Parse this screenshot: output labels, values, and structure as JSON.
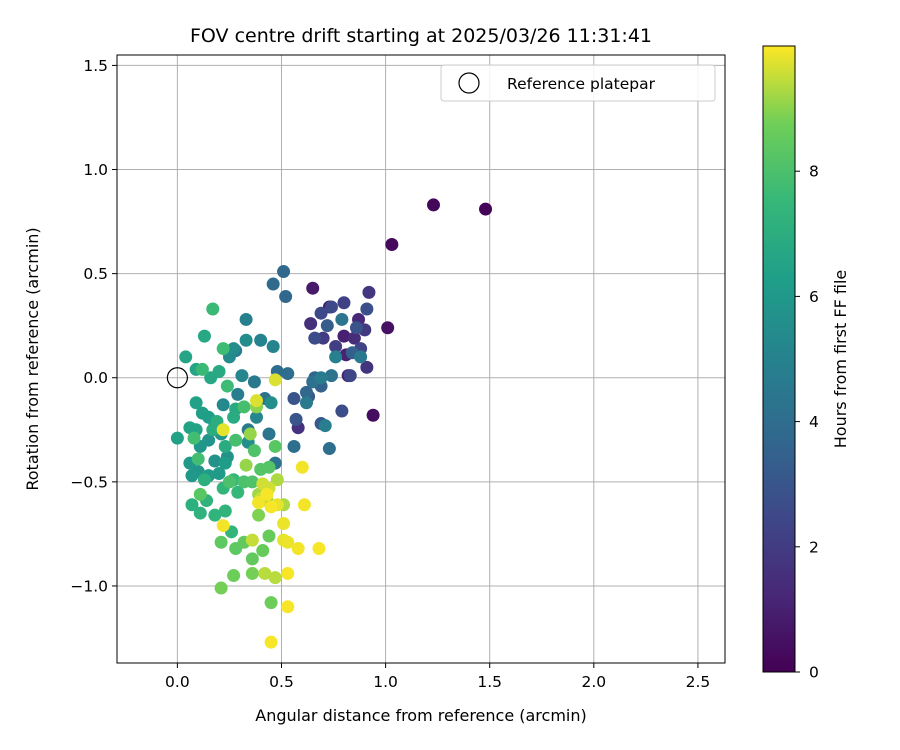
{
  "chart_data": {
    "type": "scatter",
    "title": "FOV centre drift starting at 2025/03/26 11:31:41",
    "xlabel": "Angular distance from reference (arcmin)",
    "ylabel": "Rotation from reference (arcmin)",
    "xlim": [
      -0.29,
      2.63
    ],
    "ylim": [
      -1.37,
      1.55
    ],
    "xticks": [
      0.0,
      0.5,
      1.0,
      1.5,
      2.0,
      2.5
    ],
    "xtick_labels": [
      "0.0",
      "0.5",
      "1.0",
      "1.5",
      "2.0",
      "2.5"
    ],
    "yticks": [
      -1.0,
      -0.5,
      0.0,
      0.5,
      1.0,
      1.5
    ],
    "ytick_labels": [
      "−1.0",
      "−0.5",
      "0.0",
      "0.5",
      "1.0",
      "1.5"
    ],
    "grid": true,
    "legend": {
      "position": "top-right",
      "entries": [
        {
          "label": "Reference platepar",
          "marker": "open-circle"
        }
      ]
    },
    "reference_point": {
      "x": 0.0,
      "y": 0.0
    },
    "colorbar": {
      "label": "Hours from first FF file",
      "colormap": "viridis",
      "range": [
        0,
        10
      ],
      "ticks": [
        0,
        2,
        4,
        6,
        8
      ],
      "tick_labels": [
        "0",
        "2",
        "4",
        "6",
        "8"
      ]
    },
    "points": [
      [
        1.48,
        0.81,
        0.1
      ],
      [
        1.23,
        0.83,
        0.2
      ],
      [
        1.03,
        0.64,
        0.3
      ],
      [
        0.94,
        -0.18,
        0.4
      ],
      [
        1.01,
        0.24,
        0.5
      ],
      [
        0.65,
        0.43,
        0.8
      ],
      [
        0.73,
        0.34,
        0.9
      ],
      [
        0.8,
        0.2,
        1.0
      ],
      [
        0.81,
        0.11,
        1.1
      ],
      [
        0.82,
        0.01,
        1.2
      ],
      [
        0.87,
        0.28,
        1.3
      ],
      [
        0.85,
        0.19,
        1.4
      ],
      [
        0.64,
        0.26,
        1.5
      ],
      [
        0.58,
        -0.24,
        1.6
      ],
      [
        0.91,
        0.05,
        1.7
      ],
      [
        0.92,
        0.41,
        1.8
      ],
      [
        0.9,
        0.23,
        1.9
      ],
      [
        0.7,
        0.19,
        2.0
      ],
      [
        0.76,
        0.15,
        2.1
      ],
      [
        0.8,
        0.36,
        2.2
      ],
      [
        0.88,
        0.14,
        2.3
      ],
      [
        0.83,
        0.01,
        2.4
      ],
      [
        0.69,
        0.31,
        2.5
      ],
      [
        0.74,
        0.34,
        2.5
      ],
      [
        0.66,
        0.19,
        2.6
      ],
      [
        0.79,
        -0.16,
        2.7
      ],
      [
        0.91,
        0.33,
        2.8
      ],
      [
        0.86,
        0.24,
        2.9
      ],
      [
        0.56,
        -0.1,
        3.0
      ],
      [
        0.57,
        -0.2,
        3.0
      ],
      [
        0.63,
        -0.09,
        3.1
      ],
      [
        0.69,
        -0.22,
        3.2
      ],
      [
        0.72,
        0.25,
        3.3
      ],
      [
        0.84,
        0.12,
        3.4
      ],
      [
        0.69,
        -0.04,
        3.5
      ],
      [
        0.66,
        0.0,
        3.6
      ],
      [
        0.62,
        -0.07,
        3.7
      ],
      [
        0.52,
        0.39,
        3.8
      ],
      [
        0.51,
        0.51,
        3.8
      ],
      [
        0.46,
        0.45,
        3.9
      ],
      [
        0.48,
        0.03,
        4.0
      ],
      [
        0.53,
        0.02,
        4.0
      ],
      [
        0.73,
        -0.34,
        4.1
      ],
      [
        0.56,
        -0.33,
        4.1
      ],
      [
        0.65,
        -0.02,
        4.2
      ],
      [
        0.74,
        0.01,
        4.3
      ],
      [
        0.79,
        0.28,
        4.4
      ],
      [
        0.88,
        0.1,
        4.5
      ],
      [
        0.62,
        -0.12,
        4.6
      ],
      [
        0.69,
        0.0,
        4.7
      ],
      [
        0.71,
        -0.23,
        4.8
      ],
      [
        0.76,
        0.1,
        4.9
      ],
      [
        0.42,
        -0.1,
        4.2
      ],
      [
        0.47,
        -0.41,
        4.3
      ],
      [
        0.44,
        -0.27,
        4.4
      ],
      [
        0.37,
        -0.02,
        4.5
      ],
      [
        0.34,
        -0.25,
        4.6
      ],
      [
        0.28,
        0.13,
        4.7
      ],
      [
        0.29,
        -0.08,
        4.8
      ],
      [
        0.33,
        0.28,
        4.9
      ],
      [
        0.4,
        0.18,
        5.0
      ],
      [
        0.46,
        0.15,
        5.1
      ],
      [
        0.38,
        -0.19,
        5.2
      ],
      [
        0.31,
        0.01,
        5.2
      ],
      [
        0.22,
        -0.13,
        5.3
      ],
      [
        0.25,
        0.1,
        5.4
      ],
      [
        0.33,
        0.18,
        5.5
      ],
      [
        0.27,
        0.14,
        5.5
      ],
      [
        0.45,
        -0.12,
        5.6
      ],
      [
        0.34,
        -0.31,
        5.6
      ],
      [
        0.24,
        -0.38,
        5.7
      ],
      [
        0.18,
        -0.4,
        5.7
      ],
      [
        0.21,
        -0.27,
        5.8
      ],
      [
        0.15,
        -0.3,
        5.8
      ],
      [
        0.11,
        -0.33,
        5.9
      ],
      [
        0.1,
        -0.45,
        5.9
      ],
      [
        0.06,
        -0.41,
        6.0
      ],
      [
        0.07,
        -0.47,
        6.0
      ],
      [
        0.15,
        -0.47,
        6.1
      ],
      [
        0.2,
        -0.46,
        6.1
      ],
      [
        0.23,
        -0.41,
        6.2
      ],
      [
        0.18,
        -0.22,
        6.2
      ],
      [
        0.15,
        -0.19,
        6.3
      ],
      [
        0.12,
        -0.17,
        6.3
      ],
      [
        0.09,
        -0.12,
        6.4
      ],
      [
        0.0,
        -0.29,
        6.4
      ],
      [
        0.09,
        -0.25,
        6.5
      ],
      [
        0.06,
        -0.24,
        6.5
      ],
      [
        0.04,
        0.1,
        6.6
      ],
      [
        0.09,
        0.04,
        6.6
      ],
      [
        0.13,
        0.2,
        6.7
      ],
      [
        0.16,
        0.0,
        6.7
      ],
      [
        0.2,
        0.03,
        6.8
      ],
      [
        0.28,
        -0.15,
        6.8
      ],
      [
        0.27,
        -0.19,
        6.9
      ],
      [
        0.23,
        -0.33,
        6.9
      ],
      [
        0.19,
        -0.21,
        7.0
      ],
      [
        0.17,
        -0.25,
        7.0
      ],
      [
        0.13,
        -0.49,
        7.1
      ],
      [
        0.07,
        -0.61,
        7.1
      ],
      [
        0.11,
        -0.65,
        7.2
      ],
      [
        0.14,
        -0.59,
        7.2
      ],
      [
        0.18,
        -0.66,
        7.3
      ],
      [
        0.23,
        -0.64,
        7.3
      ],
      [
        0.26,
        -0.74,
        7.4
      ],
      [
        0.22,
        -0.53,
        7.4
      ],
      [
        0.27,
        -0.49,
        7.5
      ],
      [
        0.29,
        -0.55,
        7.5
      ],
      [
        0.12,
        0.04,
        7.6
      ],
      [
        0.17,
        0.33,
        7.6
      ],
      [
        0.22,
        0.14,
        7.7
      ],
      [
        0.24,
        -0.04,
        7.7
      ],
      [
        0.1,
        -0.39,
        7.8
      ],
      [
        0.08,
        -0.29,
        7.8
      ],
      [
        0.32,
        -0.14,
        7.9
      ],
      [
        0.28,
        -0.3,
        7.9
      ],
      [
        0.25,
        -0.5,
        8.0
      ],
      [
        0.32,
        -0.5,
        8.0
      ],
      [
        0.37,
        -0.35,
        8.1
      ],
      [
        0.36,
        -0.5,
        8.1
      ],
      [
        0.4,
        -0.44,
        8.2
      ],
      [
        0.44,
        -0.43,
        8.2
      ],
      [
        0.47,
        -0.33,
        8.3
      ],
      [
        0.11,
        -0.56,
        8.3
      ],
      [
        0.21,
        -0.79,
        8.4
      ],
      [
        0.28,
        -0.82,
        8.4
      ],
      [
        0.32,
        -0.79,
        8.5
      ],
      [
        0.36,
        -0.87,
        8.5
      ],
      [
        0.41,
        -0.83,
        8.6
      ],
      [
        0.44,
        -0.76,
        8.6
      ],
      [
        0.45,
        -1.08,
        8.7
      ],
      [
        0.27,
        -0.95,
        8.7
      ],
      [
        0.21,
        -1.01,
        8.8
      ],
      [
        0.36,
        -0.94,
        8.8
      ],
      [
        0.39,
        -0.66,
        8.9
      ],
      [
        0.42,
        -0.55,
        9.0
      ],
      [
        0.38,
        -0.14,
        9.0
      ],
      [
        0.35,
        -0.27,
        9.1
      ],
      [
        0.33,
        -0.42,
        9.1
      ],
      [
        0.39,
        -0.56,
        9.2
      ],
      [
        0.43,
        -0.59,
        9.2
      ],
      [
        0.48,
        -0.49,
        9.3
      ],
      [
        0.51,
        -0.61,
        9.3
      ],
      [
        0.47,
        -0.96,
        9.4
      ],
      [
        0.42,
        -0.94,
        9.4
      ],
      [
        0.36,
        -0.78,
        9.5
      ],
      [
        0.4,
        -0.58,
        9.5
      ],
      [
        0.44,
        -0.53,
        9.6
      ],
      [
        0.41,
        -0.51,
        9.6
      ],
      [
        0.47,
        -0.01,
        9.7
      ],
      [
        0.38,
        -0.11,
        9.7
      ],
      [
        0.22,
        -0.25,
        9.8
      ],
      [
        0.48,
        -0.61,
        9.8
      ],
      [
        0.51,
        -0.78,
        9.8
      ],
      [
        0.51,
        -0.7,
        9.85
      ],
      [
        0.53,
        -0.79,
        9.85
      ],
      [
        0.58,
        -0.82,
        9.9
      ],
      [
        0.6,
        -0.43,
        9.9
      ],
      [
        0.61,
        -0.61,
        9.9
      ],
      [
        0.68,
        -0.82,
        9.95
      ],
      [
        0.53,
        -0.94,
        9.95
      ],
      [
        0.53,
        -1.1,
        9.95
      ],
      [
        0.45,
        -1.27,
        9.95
      ],
      [
        0.43,
        -0.56,
        9.95
      ],
      [
        0.45,
        -0.62,
        9.95
      ],
      [
        0.22,
        -0.71,
        9.9
      ],
      [
        0.39,
        -0.6,
        9.9
      ]
    ]
  }
}
